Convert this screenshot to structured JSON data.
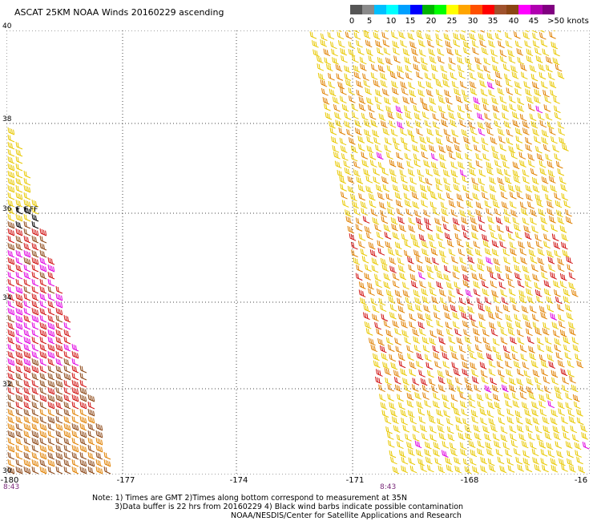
{
  "title": "ASCAT 25KM NOAA Winds 20160229 ascending",
  "legend": {
    "colors": [
      "#555555",
      "#8a8a8a",
      "#00bfff",
      "#00ffff",
      "#00a0ff",
      "#0000ff",
      "#00b400",
      "#00ff00",
      "#ffff00",
      "#ffa500",
      "#ff5000",
      "#ff0000",
      "#a0522d",
      "#8b4513",
      "#ff00ff",
      "#b000b0",
      "#800080"
    ],
    "labels": [
      "0",
      "5",
      "10",
      "15",
      "20",
      "25",
      "30",
      "35",
      "40",
      "45",
      ">50 knots"
    ]
  },
  "axes": {
    "lat_labels": [
      "40",
      "38",
      "36",
      "34",
      "32",
      "30"
    ],
    "lon_labels": [
      "-180",
      "-177",
      "-174",
      "-171",
      "-168",
      "-16"
    ],
    "pass_labels": [
      "8:43",
      "8:43"
    ]
  },
  "flags": [
    "F",
    "F",
    "FF"
  ],
  "notes": [
    "Note: 1) Times are GMT 2)Times along bottom correspond to measurement at 35N",
    "3)Data buffer is 22 hrs from 20160229 4) Black wind barbs indicate possible contamination",
    "NOAA/NESDIS/Center for Satellite Applications and Research"
  ],
  "colors": {
    "grid": "#444444",
    "barb_yellow": "#e8c800",
    "barb_orange": "#e08000",
    "barb_red": "#d01010",
    "barb_brown": "#8b4513",
    "barb_magenta": "#e000e0",
    "barb_black": "#000000"
  }
}
